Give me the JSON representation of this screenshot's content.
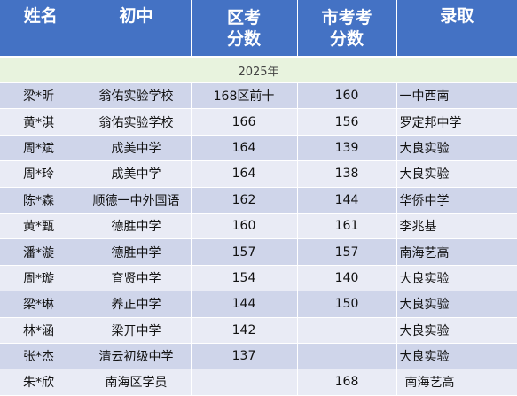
{
  "headers": {
    "name": "姓名",
    "middle_school": "初中",
    "district_score": [
      "区考",
      "分数"
    ],
    "city_score": [
      "市考考",
      "分数"
    ],
    "admission": "录取"
  },
  "year_label": "2025年",
  "rows": [
    {
      "name": "梁*昕",
      "school": "翁佑实验学校",
      "district": "168区前十",
      "city": "160",
      "admission": "一中西南"
    },
    {
      "name": "黄*淇",
      "school": "翁佑实验学校",
      "district": "166",
      "city": "156",
      "admission": "罗定邦中学"
    },
    {
      "name": "周*斌",
      "school": "成美中学",
      "district": "164",
      "city": "139",
      "admission": "大良实验"
    },
    {
      "name": "周*玲",
      "school": "成美中学",
      "district": "164",
      "city": "138",
      "admission": "大良实验"
    },
    {
      "name": "陈*森",
      "school": "顺德一中外国语",
      "district": "162",
      "city": "144",
      "admission": "华侨中学"
    },
    {
      "name": "黄*甄",
      "school": "德胜中学",
      "district": "160",
      "city": "161",
      "admission": "李兆基"
    },
    {
      "name": "潘*漩",
      "school": "德胜中学",
      "district": "157",
      "city": "157",
      "admission": "南海艺高"
    },
    {
      "name": "周*璇",
      "school": "育贤中学",
      "district": "154",
      "city": "140",
      "admission": "大良实验"
    },
    {
      "name": "梁*琳",
      "school": "养正中学",
      "district": "144",
      "city": "150",
      "admission": "大良实验"
    },
    {
      "name": "林*涵",
      "school": "梁开中学",
      "district": "142",
      "city": "",
      "admission": "大良实验"
    },
    {
      "name": "张*杰",
      "school": "清云初级中学",
      "district": "137",
      "city": "",
      "admission": "大良实验"
    },
    {
      "name": "朱*欣",
      "school": "南海区学员",
      "district": "",
      "city": "168",
      "admission": "南海艺高"
    }
  ]
}
